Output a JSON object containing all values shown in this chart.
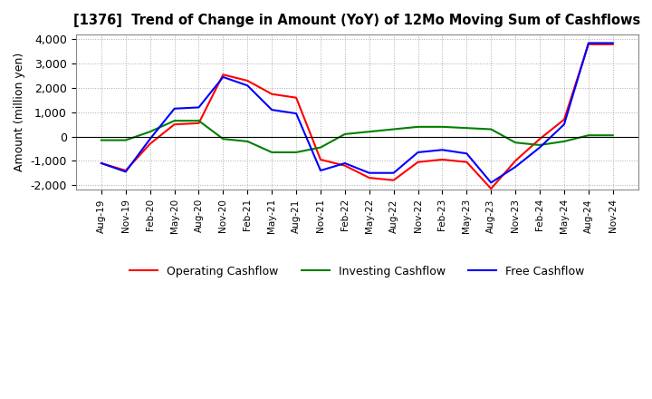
{
  "title": "[1376]  Trend of Change in Amount (YoY) of 12Mo Moving Sum of Cashflows",
  "ylabel": "Amount (million yen)",
  "ylim": [
    -2200,
    4200
  ],
  "yticks": [
    -2000,
    -1000,
    0,
    1000,
    2000,
    3000,
    4000
  ],
  "x_labels": [
    "Aug-19",
    "Nov-19",
    "Feb-20",
    "May-20",
    "Aug-20",
    "Nov-20",
    "Feb-21",
    "May-21",
    "Aug-21",
    "Nov-21",
    "Feb-22",
    "May-22",
    "Aug-22",
    "Nov-22",
    "Feb-23",
    "May-23",
    "Aug-23",
    "Nov-23",
    "Feb-24",
    "May-24",
    "Aug-24",
    "Nov-24"
  ],
  "operating": [
    -1100,
    -1400,
    -300,
    500,
    550,
    2550,
    2300,
    1750,
    1600,
    -950,
    -1200,
    -1700,
    -1800,
    -1050,
    -950,
    -1050,
    -2150,
    -1000,
    -100,
    700,
    3800,
    3800
  ],
  "investing": [
    -150,
    -150,
    200,
    650,
    650,
    -100,
    -200,
    -650,
    -650,
    -450,
    100,
    200,
    300,
    400,
    400,
    350,
    300,
    -250,
    -350,
    -200,
    50,
    50
  ],
  "free": [
    -1100,
    -1450,
    -100,
    1150,
    1200,
    2450,
    2100,
    1100,
    950,
    -1400,
    -1100,
    -1500,
    -1500,
    -650,
    -550,
    -700,
    -1900,
    -1250,
    -450,
    500,
    3850,
    3850
  ],
  "operating_color": "#ff0000",
  "investing_color": "#008000",
  "free_color": "#0000ff",
  "background_color": "#ffffff",
  "grid_color": "#aaaaaa"
}
